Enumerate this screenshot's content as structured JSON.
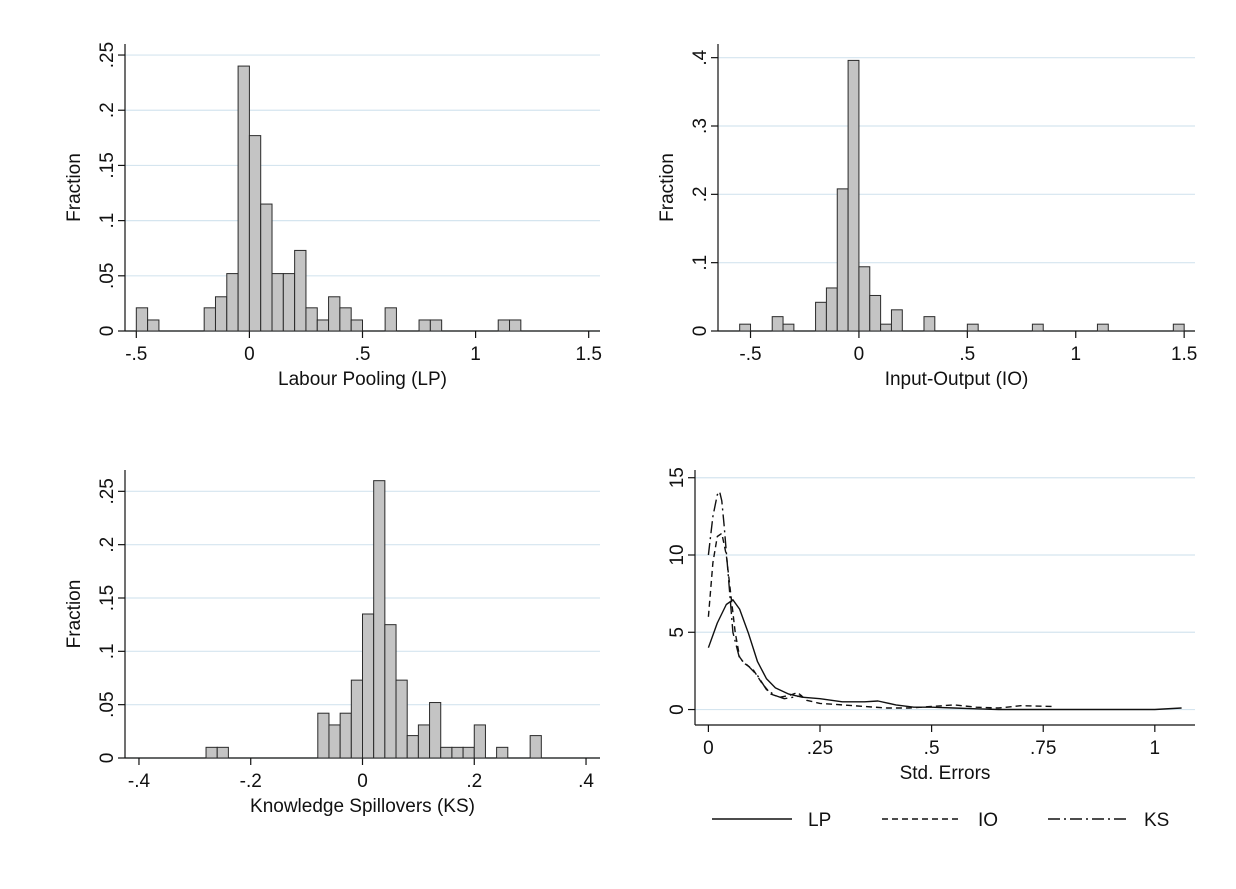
{
  "colors": {
    "bar_fill": "#c4c4c4",
    "bar_stroke": "#2a2a2a",
    "grid": "#d5e5ef",
    "axis": "#111111"
  },
  "chart_data": [
    {
      "type": "bar",
      "xlabel": "Labour Pooling (LP)",
      "ylabel": "Fraction",
      "xlim": [
        -0.55,
        1.55
      ],
      "ylim": [
        0,
        0.26
      ],
      "bin_width": 0.05,
      "xticks": [
        -0.5,
        0,
        0.5,
        1,
        1.5
      ],
      "xtick_labels": [
        "-.5",
        "0",
        ".5",
        "1",
        "1.5"
      ],
      "yticks": [
        0,
        0.05,
        0.1,
        0.15,
        0.2,
        0.25
      ],
      "ytick_labels": [
        "0",
        ".05",
        ".1",
        ".15",
        ".2",
        ".25"
      ],
      "grid": true,
      "bars": [
        {
          "x": -0.475,
          "value": 0.021
        },
        {
          "x": -0.425,
          "value": 0.01
        },
        {
          "x": -0.175,
          "value": 0.021
        },
        {
          "x": -0.125,
          "value": 0.031
        },
        {
          "x": -0.075,
          "value": 0.052
        },
        {
          "x": -0.025,
          "value": 0.24
        },
        {
          "x": 0.025,
          "value": 0.177
        },
        {
          "x": 0.075,
          "value": 0.115
        },
        {
          "x": 0.125,
          "value": 0.052
        },
        {
          "x": 0.175,
          "value": 0.052
        },
        {
          "x": 0.225,
          "value": 0.073
        },
        {
          "x": 0.275,
          "value": 0.021
        },
        {
          "x": 0.325,
          "value": 0.01
        },
        {
          "x": 0.375,
          "value": 0.031
        },
        {
          "x": 0.425,
          "value": 0.021
        },
        {
          "x": 0.475,
          "value": 0.01
        },
        {
          "x": 0.625,
          "value": 0.021
        },
        {
          "x": 0.775,
          "value": 0.01
        },
        {
          "x": 0.825,
          "value": 0.01
        },
        {
          "x": 1.125,
          "value": 0.01
        },
        {
          "x": 1.175,
          "value": 0.01
        }
      ]
    },
    {
      "type": "bar",
      "xlabel": "Input-Output (IO)",
      "ylabel": "Fraction",
      "xlim": [
        -0.65,
        1.55
      ],
      "ylim": [
        0,
        0.42
      ],
      "bin_width": 0.05,
      "xticks": [
        -0.5,
        0,
        0.5,
        1,
        1.5
      ],
      "xtick_labels": [
        "-.5",
        "0",
        ".5",
        "1",
        "1.5"
      ],
      "yticks": [
        0,
        0.1,
        0.2,
        0.3,
        0.4
      ],
      "ytick_labels": [
        "0",
        ".1",
        ".2",
        ".3",
        ".4"
      ],
      "grid": true,
      "bars": [
        {
          "x": -0.525,
          "value": 0.01
        },
        {
          "x": -0.375,
          "value": 0.021
        },
        {
          "x": -0.325,
          "value": 0.01
        },
        {
          "x": -0.175,
          "value": 0.042
        },
        {
          "x": -0.125,
          "value": 0.063
        },
        {
          "x": -0.075,
          "value": 0.208
        },
        {
          "x": -0.025,
          "value": 0.396
        },
        {
          "x": 0.025,
          "value": 0.094
        },
        {
          "x": 0.075,
          "value": 0.052
        },
        {
          "x": 0.125,
          "value": 0.01
        },
        {
          "x": 0.175,
          "value": 0.031
        },
        {
          "x": 0.325,
          "value": 0.021
        },
        {
          "x": 0.525,
          "value": 0.01
        },
        {
          "x": 0.825,
          "value": 0.01
        },
        {
          "x": 1.125,
          "value": 0.01
        },
        {
          "x": 1.475,
          "value": 0.01
        }
      ]
    },
    {
      "type": "bar",
      "xlabel": "Knowledge Spillovers (KS)",
      "ylabel": "Fraction",
      "xlim": [
        -0.425,
        0.425
      ],
      "ylim": [
        0,
        0.27
      ],
      "bin_width": 0.02,
      "xticks": [
        -0.4,
        -0.2,
        0,
        0.2,
        0.4
      ],
      "xtick_labels": [
        "-.4",
        "-.2",
        "0",
        ".2",
        ".4"
      ],
      "yticks": [
        0,
        0.05,
        0.1,
        0.15,
        0.2,
        0.25
      ],
      "ytick_labels": [
        "0",
        ".05",
        ".1",
        ".15",
        ".2",
        ".25"
      ],
      "grid": true,
      "bars": [
        {
          "x": -0.27,
          "value": 0.01
        },
        {
          "x": -0.25,
          "value": 0.01
        },
        {
          "x": -0.07,
          "value": 0.042
        },
        {
          "x": -0.05,
          "value": 0.031
        },
        {
          "x": -0.03,
          "value": 0.042
        },
        {
          "x": -0.01,
          "value": 0.073
        },
        {
          "x": 0.01,
          "value": 0.135
        },
        {
          "x": 0.03,
          "value": 0.26
        },
        {
          "x": 0.05,
          "value": 0.125
        },
        {
          "x": 0.07,
          "value": 0.073
        },
        {
          "x": 0.09,
          "value": 0.021
        },
        {
          "x": 0.11,
          "value": 0.031
        },
        {
          "x": 0.13,
          "value": 0.052
        },
        {
          "x": 0.15,
          "value": 0.01
        },
        {
          "x": 0.17,
          "value": 0.01
        },
        {
          "x": 0.19,
          "value": 0.01
        },
        {
          "x": 0.21,
          "value": 0.031
        },
        {
          "x": 0.25,
          "value": 0.01
        },
        {
          "x": 0.31,
          "value": 0.021
        }
      ]
    },
    {
      "type": "line",
      "xlabel": "Std. Errors",
      "ylabel": "",
      "xlim": [
        -0.03,
        1.09
      ],
      "ylim": [
        -1,
        15.5
      ],
      "xticks": [
        0,
        0.25,
        0.5,
        0.75,
        1
      ],
      "xtick_labels": [
        "0",
        ".25",
        ".5",
        ".75",
        "1"
      ],
      "yticks": [
        0,
        5,
        10,
        15
      ],
      "ytick_labels": [
        "0",
        "5",
        "10",
        "15"
      ],
      "grid": true,
      "legend": "bottom",
      "series": [
        {
          "name": "LP",
          "style": "solid",
          "x": [
            0.0,
            0.02,
            0.04,
            0.055,
            0.07,
            0.09,
            0.11,
            0.13,
            0.15,
            0.18,
            0.21,
            0.25,
            0.3,
            0.35,
            0.38,
            0.42,
            0.46,
            0.5,
            0.55,
            0.6,
            0.65,
            0.7,
            0.8,
            0.9,
            1.0,
            1.06
          ],
          "y": [
            4.0,
            5.6,
            6.8,
            7.1,
            6.5,
            4.9,
            3.1,
            2.0,
            1.4,
            1.0,
            0.8,
            0.7,
            0.5,
            0.5,
            0.55,
            0.3,
            0.15,
            0.15,
            0.1,
            0.05,
            0.0,
            0.0,
            0.0,
            0.0,
            0.0,
            0.1
          ]
        },
        {
          "name": "IO",
          "style": "dashed",
          "x": [
            0.0,
            0.01,
            0.02,
            0.03,
            0.04,
            0.05,
            0.06,
            0.07,
            0.08,
            0.1,
            0.12,
            0.14,
            0.16,
            0.18,
            0.2,
            0.22,
            0.25,
            0.3,
            0.35,
            0.4,
            0.45,
            0.5,
            0.55,
            0.6,
            0.65,
            0.7,
            0.77
          ],
          "y": [
            6.0,
            9.5,
            11.2,
            11.4,
            10.0,
            7.5,
            5.0,
            3.4,
            3.0,
            2.6,
            1.7,
            1.0,
            0.8,
            0.9,
            1.1,
            0.6,
            0.4,
            0.3,
            0.2,
            0.1,
            0.1,
            0.2,
            0.3,
            0.15,
            0.1,
            0.25,
            0.2
          ]
        },
        {
          "name": "KS",
          "style": "dashdot",
          "x": [
            0.0,
            0.01,
            0.02,
            0.025,
            0.03,
            0.035,
            0.045,
            0.055,
            0.07,
            0.09,
            0.11,
            0.13,
            0.15,
            0.17,
            0.19,
            0.21
          ],
          "y": [
            10.0,
            12.5,
            13.9,
            14.1,
            13.5,
            12.0,
            8.5,
            5.0,
            3.3,
            2.8,
            2.2,
            1.3,
            0.9,
            0.7,
            0.8,
            0.9
          ]
        }
      ]
    }
  ]
}
